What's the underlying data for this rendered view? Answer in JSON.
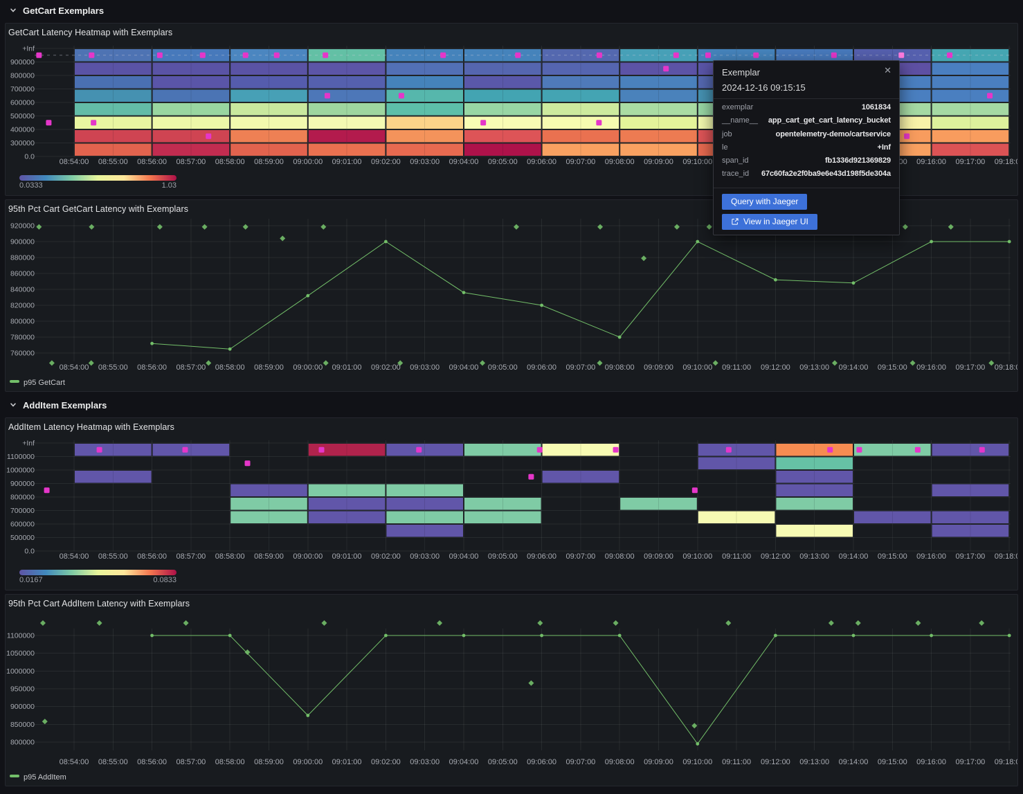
{
  "sections": [
    {
      "title": "GetCart Exemplars"
    },
    {
      "title": "AddItem Exemplars"
    }
  ],
  "colors": {
    "series_green": "#73bf69",
    "exemplar_magenta": "#e536c9",
    "exemplar_highlight": "#ff7bdf",
    "button_blue": "#3d71d9",
    "gradient_stops": [
      "#5e54a5",
      "#4189be",
      "#7ecba5",
      "#e8f59b",
      "#fee79b",
      "#f3764f",
      "#ad1048"
    ]
  },
  "chart_data": {
    "time_ticks": [
      "08:54:00",
      "08:55:00",
      "08:56:00",
      "08:57:00",
      "08:58:00",
      "08:59:00",
      "09:00:00",
      "09:01:00",
      "09:02:00",
      "09:03:00",
      "09:04:00",
      "09:05:00",
      "09:06:00",
      "09:07:00",
      "09:08:00",
      "09:09:00",
      "09:10:00",
      "09:11:00",
      "09:12:00",
      "09:13:00",
      "09:14:00",
      "09:15:00",
      "09:16:00",
      "09:17:00",
      "09:18:00"
    ],
    "getcart_heatmap": {
      "type": "heatmap",
      "title": "GetCart Latency Heatmap with Exemplars",
      "y_labels": [
        "+Inf",
        "900000",
        "800000",
        "700000",
        "600000",
        "500000",
        "400000",
        "300000",
        "0.0"
      ],
      "col_start_min": 54,
      "col_span_min": 2,
      "rows": [
        [
          "#4e73b3",
          "#4779bb",
          "#4b86c0",
          "#63c0a5",
          "#4583bb",
          "#4583bb",
          "#5468af",
          "#47a0b7",
          "#4583bb",
          "#4779bb",
          "#5560ae",
          "#45a6b2"
        ],
        [
          "#5a53a5",
          "#5a53a5",
          "#5a53a5",
          "#5c55a7",
          "#5270b5",
          "#5566af",
          "#5565b0",
          "#5c53a6",
          "#5a55a8",
          "#5a55a8",
          "#5e50a3",
          "#4a7fc0"
        ],
        [
          "#4a70b2",
          "#5a55a8",
          "#555cad",
          "#5560ae",
          "#4583bb",
          "#5a58a9",
          "#4f7ab9",
          "#4a81bd",
          "#5468b0",
          "#5468b0",
          "#4a7fc0",
          "#4a7fc0"
        ],
        [
          "#4591b1",
          "#4b74b4",
          "#47a0b6",
          "#4d77b8",
          "#56b7ac",
          "#43a4b2",
          "#44a4b3",
          "#4a82bb",
          "#4591b1",
          "#4591b1",
          "#4a7fc0",
          "#4a7fc0"
        ],
        [
          "#63bca7",
          "#99d6a0",
          "#c9e89e",
          "#9ed69f",
          "#5dbfa9",
          "#98d6a4",
          "#cdea9e",
          "#aadca3",
          "#98d6a4",
          "#98d6a4",
          "#a5d9a3",
          "#a5d9a3"
        ],
        [
          "#e9f6a1",
          "#edf8a8",
          "#f2f9ae",
          "#f4fab2",
          "#fbd489",
          "#f8fcb4",
          "#f6fbb0",
          "#e4f49a",
          "#f2f9ae",
          "#f2f9ae",
          "#f8f2a8",
          "#ddf19c"
        ],
        [
          "#cf4452",
          "#cf4452",
          "#ee8054",
          "#b31b4d",
          "#f4935b",
          "#dd5457",
          "#ea7150",
          "#ed7b52",
          "#dd5457",
          "#dd5457",
          "#f89c5e",
          "#f89c5e"
        ],
        [
          "#e2634e",
          "#c22c50",
          "#e2634e",
          "#ea7150",
          "#e86a50",
          "#ae124a",
          "#f9a161",
          "#f9a161",
          "#e86a50",
          "#e86a50",
          "#f9a161",
          "#dc5355"
        ]
      ],
      "exemplars": [
        [
          53.1,
          0
        ],
        [
          53.35,
          5
        ],
        [
          54.45,
          0
        ],
        [
          54.5,
          5
        ],
        [
          56.2,
          0
        ],
        [
          57.3,
          0
        ],
        [
          57.45,
          6
        ],
        [
          58.4,
          0
        ],
        [
          59.2,
          0
        ],
        [
          60.45,
          0
        ],
        [
          60.5,
          3
        ],
        [
          62.4,
          3
        ],
        [
          63.47,
          0
        ],
        [
          64.5,
          5
        ],
        [
          65.39,
          0
        ],
        [
          67.48,
          0
        ],
        [
          67.47,
          5
        ],
        [
          69.19,
          1
        ],
        [
          69.45,
          0
        ],
        [
          70.27,
          0
        ],
        [
          71.5,
          0
        ],
        [
          73.5,
          0
        ],
        [
          76.47,
          0
        ],
        [
          75.37,
          6
        ],
        [
          77.5,
          3
        ]
      ],
      "exemplar_highlight": [
        75.23,
        0
      ],
      "dashed_guide_row": 0,
      "legend": {
        "min": "0.0333",
        "max": "1.03"
      }
    },
    "getcart_line": {
      "type": "line",
      "title": "95th Pct Cart GetCart Latency with Exemplars",
      "series_label": "p95 GetCart",
      "y_ticks": [
        760000,
        780000,
        800000,
        820000,
        840000,
        860000,
        880000,
        900000,
        920000
      ],
      "points": [
        [
          56,
          772000
        ],
        [
          58,
          765000
        ],
        [
          60,
          832000
        ],
        [
          62,
          900000
        ],
        [
          64,
          836000
        ],
        [
          66,
          820000
        ],
        [
          68,
          780000
        ],
        [
          70,
          900000
        ],
        [
          72,
          852000
        ],
        [
          74,
          848000
        ],
        [
          76,
          900000
        ],
        [
          78,
          900000
        ]
      ],
      "exemplars": [
        [
          53.1,
          918500
        ],
        [
          54.45,
          918500
        ],
        [
          56.2,
          918500
        ],
        [
          57.35,
          918500
        ],
        [
          58.4,
          918500
        ],
        [
          60.4,
          918500
        ],
        [
          65.35,
          918500
        ],
        [
          67.5,
          918500
        ],
        [
          69.47,
          918500
        ],
        [
          70.3,
          918500
        ],
        [
          75.33,
          918500
        ],
        [
          76.5,
          918500
        ],
        [
          59.35,
          904000
        ],
        [
          68.62,
          879000
        ],
        [
          53.43,
          747500
        ],
        [
          54.44,
          747500
        ],
        [
          57.45,
          747500
        ],
        [
          60.46,
          747500
        ],
        [
          62.37,
          747500
        ],
        [
          64.48,
          747500
        ],
        [
          67.49,
          747500
        ],
        [
          70.46,
          747500
        ],
        [
          73.52,
          747500
        ],
        [
          75.52,
          747500
        ],
        [
          77.54,
          747500
        ]
      ]
    },
    "additem_heatmap": {
      "type": "heatmap",
      "title": "AddItem Latency Heatmap with Exemplars",
      "y_labels": [
        "+Inf",
        "1100000",
        "1000000",
        "900000",
        "800000",
        "700000",
        "600000",
        "500000",
        "0.0"
      ],
      "col_start_min": 54,
      "col_span_min": 2,
      "rows": [
        [
          "#6156a9",
          "#6156a9",
          null,
          "#b0234c",
          "#6156a9",
          "#7fcba5",
          "#f7fbb3",
          null,
          "#6156a9",
          "#f68c51",
          "#7fcba5",
          "#6156a9"
        ],
        [
          null,
          null,
          null,
          null,
          null,
          null,
          null,
          null,
          "#6156a9",
          "#66c2a5",
          null,
          null
        ],
        [
          "#6156a9",
          null,
          null,
          null,
          null,
          null,
          "#6156a9",
          null,
          null,
          "#6156a9",
          null,
          null
        ],
        [
          null,
          null,
          "#6156a9",
          "#7fcba5",
          "#7fcba5",
          null,
          null,
          null,
          null,
          "#6156a9",
          null,
          "#6156a9"
        ],
        [
          null,
          null,
          "#7fcba5",
          "#6156a9",
          "#6156a9",
          "#7fcba5",
          null,
          "#7fcba5",
          null,
          "#7fcba5",
          null,
          null
        ],
        [
          null,
          null,
          "#7fcba5",
          "#6156a9",
          "#7fcba5",
          "#7fcba5",
          null,
          null,
          "#f7fbb3",
          null,
          "#6156a9",
          "#6156a9"
        ],
        [
          null,
          null,
          null,
          null,
          "#6156a9",
          null,
          null,
          null,
          null,
          "#f7fbb3",
          null,
          "#6156a9"
        ],
        [
          null,
          null,
          null,
          null,
          null,
          null,
          null,
          null,
          null,
          null,
          null,
          null
        ]
      ],
      "exemplars": [
        [
          53.3,
          3
        ],
        [
          54.65,
          0
        ],
        [
          56.85,
          0
        ],
        [
          58.45,
          1
        ],
        [
          60.35,
          0
        ],
        [
          62.85,
          0
        ],
        [
          65.95,
          0
        ],
        [
          65.73,
          2
        ],
        [
          67.9,
          0
        ],
        [
          69.93,
          3
        ],
        [
          70.8,
          0
        ],
        [
          73.4,
          0
        ],
        [
          74.15,
          0
        ],
        [
          75.65,
          0
        ],
        [
          77.3,
          0
        ]
      ],
      "dashed_guide_row": null,
      "legend": {
        "min": "0.0167",
        "max": "0.0833"
      }
    },
    "additem_line": {
      "type": "line",
      "title": "95th Pct Cart AddItem Latency with Exemplars",
      "series_label": "p95 AddItem",
      "y_ticks": [
        800000,
        850000,
        900000,
        950000,
        1000000,
        1050000,
        1100000
      ],
      "points": [
        [
          56,
          1100000
        ],
        [
          58,
          1100000
        ],
        [
          60,
          875000
        ],
        [
          62,
          1100000
        ],
        [
          64,
          1100000
        ],
        [
          66,
          1100000
        ],
        [
          68,
          1100000
        ],
        [
          70,
          795000
        ],
        [
          72,
          1100000
        ],
        [
          74,
          1100000
        ],
        [
          76,
          1100000
        ],
        [
          78,
          1100000
        ]
      ],
      "exemplars": [
        [
          53.2,
          1135000
        ],
        [
          54.65,
          1135000
        ],
        [
          56.87,
          1135000
        ],
        [
          60.42,
          1135000
        ],
        [
          63.38,
          1135000
        ],
        [
          65.96,
          1135000
        ],
        [
          67.9,
          1135000
        ],
        [
          70.79,
          1135000
        ],
        [
          73.43,
          1135000
        ],
        [
          74.12,
          1135000
        ],
        [
          75.66,
          1135000
        ],
        [
          77.29,
          1135000
        ],
        [
          53.25,
          858000
        ],
        [
          58.45,
          1053000
        ],
        [
          65.73,
          966000
        ],
        [
          69.92,
          846000
        ]
      ]
    }
  },
  "tooltip": {
    "title": "Exemplar",
    "timestamp": "2024-12-16 09:15:15",
    "rows": [
      {
        "label": "exemplar",
        "value": "1061834"
      },
      {
        "label": "__name__",
        "value": "app_cart_get_cart_latency_bucket"
      },
      {
        "label": "job",
        "value": "opentelemetry-demo/cartservice"
      },
      {
        "label": "le",
        "value": "+Inf"
      },
      {
        "label": "span_id",
        "value": "fb1336d921369829"
      },
      {
        "label": "trace_id",
        "value": "67c60fa2e2f0ba9e6e43d198f5de304a"
      }
    ],
    "buttons": [
      {
        "label": "Query with Jaeger",
        "icon": null
      },
      {
        "label": "View in Jaeger UI",
        "icon": "external-link-icon"
      }
    ]
  }
}
